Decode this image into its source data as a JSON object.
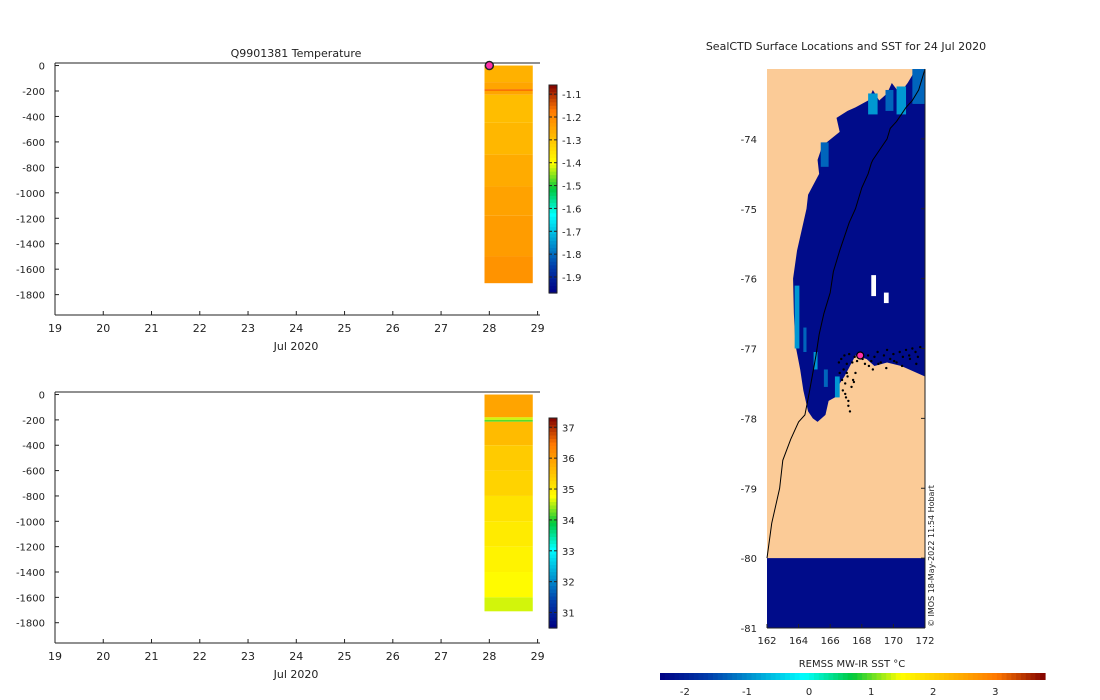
{
  "colors": {
    "land": "#FBCB97",
    "ocean": "#000C8A",
    "frame": "#222222",
    "marker": "#FF2FA8"
  },
  "chart_data": [
    {
      "id": "temperature-section",
      "type": "heatmap",
      "title": "Q9901381  Temperature",
      "xlabel": "Jul 2020",
      "ylabel": "",
      "x_ticks": [
        "19",
        "20",
        "21",
        "22",
        "23",
        "24",
        "25",
        "26",
        "27",
        "28",
        "29"
      ],
      "xlim": [
        19,
        29.05
      ],
      "y_ticks": [
        "0",
        "-200",
        "-400",
        "-600",
        "-800",
        "-1000",
        "-1200",
        "-1400",
        "-1600",
        "-1800"
      ],
      "ylim": [
        -1960,
        20
      ],
      "profile": {
        "x0": 27.9,
        "x1": 28.9
      },
      "layers": [
        {
          "top": 0,
          "bottom": -130,
          "value": -1.27
        },
        {
          "top": -130,
          "bottom": -185,
          "value": -1.25
        },
        {
          "top": -185,
          "bottom": -200,
          "value": -1.17
        },
        {
          "top": -200,
          "bottom": -230,
          "value": -1.25
        },
        {
          "top": -230,
          "bottom": -450,
          "value": -1.29
        },
        {
          "top": -450,
          "bottom": -700,
          "value": -1.28
        },
        {
          "top": -700,
          "bottom": -950,
          "value": -1.26
        },
        {
          "top": -950,
          "bottom": -1180,
          "value": -1.245
        },
        {
          "top": -1180,
          "bottom": -1500,
          "value": -1.235
        },
        {
          "top": -1500,
          "bottom": -1710,
          "value": -1.22
        }
      ],
      "surface_point": {
        "x": 28,
        "y": 0
      },
      "colorbar": {
        "min": -1.97,
        "max": -1.06,
        "ticks": [
          "-1.1",
          "-1.2",
          "-1.3",
          "-1.4",
          "-1.5",
          "-1.6",
          "-1.7",
          "-1.8",
          "-1.9"
        ]
      }
    },
    {
      "id": "salinity-section",
      "type": "heatmap",
      "title": "",
      "xlabel": "Jul 2020",
      "ylabel": "",
      "x_ticks": [
        "19",
        "20",
        "21",
        "22",
        "23",
        "24",
        "25",
        "26",
        "27",
        "28",
        "29"
      ],
      "xlim": [
        19,
        29.05
      ],
      "y_ticks": [
        "0",
        "-200",
        "-400",
        "-600",
        "-800",
        "-1000",
        "-1200",
        "-1400",
        "-1600",
        "-1800"
      ],
      "ylim": [
        -1960,
        20
      ],
      "profile": {
        "x0": 27.9,
        "x1": 28.9
      },
      "layers": [
        {
          "top": 0,
          "bottom": -180,
          "value": 35.9
        },
        {
          "top": -180,
          "bottom": -200,
          "value": 34.6
        },
        {
          "top": -200,
          "bottom": -215,
          "value": 34.2
        },
        {
          "top": -215,
          "bottom": -400,
          "value": 35.6
        },
        {
          "top": -400,
          "bottom": -600,
          "value": 35.4
        },
        {
          "top": -600,
          "bottom": -800,
          "value": 35.3
        },
        {
          "top": -800,
          "bottom": -1000,
          "value": 35.1
        },
        {
          "top": -1000,
          "bottom": -1200,
          "value": 35.0
        },
        {
          "top": -1200,
          "bottom": -1400,
          "value": 34.9
        },
        {
          "top": -1400,
          "bottom": -1600,
          "value": 34.8
        },
        {
          "top": -1600,
          "bottom": -1710,
          "value": 34.6
        }
      ],
      "colorbar": {
        "min": 30.5,
        "max": 37.3,
        "ticks": [
          "37",
          "36",
          "35",
          "34",
          "33",
          "32",
          "31"
        ]
      }
    },
    {
      "id": "sst-map",
      "type": "heatmap",
      "title": "SealCTD Surface Locations and SST for 24 Jul 2020",
      "xlabel": "",
      "ylabel": "",
      "x_ticks": [
        "162",
        "164",
        "166",
        "168",
        "170",
        "172"
      ],
      "xlim": [
        162,
        172
      ],
      "y_ticks": [
        "-74",
        "-75",
        "-76",
        "-77",
        "-78",
        "-79",
        "-80",
        "-81"
      ],
      "ylim": [
        -81,
        -73
      ],
      "coast_lon": [
        162.0,
        162.3,
        162.8,
        163.0,
        163.5,
        164.0,
        164.4,
        164.7,
        165.1,
        165.3,
        165.6,
        166.0,
        166.2,
        166.6,
        166.9,
        167.2,
        167.6,
        168.0,
        168.4,
        168.6,
        168.7,
        169.0,
        169.3,
        169.6,
        169.8,
        170.2,
        170.5,
        170.8,
        171.2,
        171.6,
        172.0
      ],
      "coast_lat": [
        -80.0,
        -79.5,
        -79.0,
        -78.6,
        -78.3,
        -78.05,
        -77.95,
        -77.6,
        -77.1,
        -76.8,
        -76.5,
        -76.2,
        -75.9,
        -75.6,
        -75.4,
        -75.2,
        -75.0,
        -74.7,
        -74.5,
        -74.35,
        -74.3,
        -74.2,
        -74.1,
        -74.0,
        -73.85,
        -73.75,
        -73.65,
        -73.55,
        -73.45,
        -73.3,
        -73.0
      ],
      "ocean_polygon": {
        "lon": [
          163.8,
          163.7,
          163.65,
          163.9,
          164.3,
          164.5,
          164.6,
          165.3,
          165.2,
          165.5,
          166.6,
          166.4,
          167.1,
          167.6,
          168.4,
          168.7,
          169.1,
          169.6,
          169.9,
          170.4,
          170.9,
          171.3,
          171.6,
          171.8,
          172.0,
          172.0,
          170.5,
          169.6,
          168.8,
          168.3,
          167.6,
          166.9,
          166.6,
          166.3,
          165.9,
          165.7,
          165.2,
          164.9,
          164.6,
          164.3,
          164.1
        ],
        "lat": [
          -76.95,
          -76.5,
          -76.0,
          -75.6,
          -75.2,
          -75.0,
          -74.8,
          -74.5,
          -74.3,
          -74.1,
          -73.9,
          -73.7,
          -73.6,
          -73.55,
          -73.45,
          -73.3,
          -73.45,
          -73.35,
          -73.2,
          -73.35,
          -73.2,
          -73.05,
          -73.05,
          -73.0,
          -73.0,
          -77.4,
          -77.25,
          -77.2,
          -77.25,
          -77.15,
          -77.1,
          -77.4,
          -77.5,
          -77.7,
          -77.75,
          -77.95,
          -78.05,
          -78.0,
          -77.9,
          -77.6,
          -77.3
        ]
      },
      "cold_cells": [
        {
          "lon": 171.2,
          "lat": -73.0,
          "w": 0.8,
          "h": 0.5
        },
        {
          "lon": 168.4,
          "lat": -73.35,
          "w": 0.6,
          "h": 0.3
        },
        {
          "lon": 169.5,
          "lat": -73.3,
          "w": 0.5,
          "h": 0.3
        },
        {
          "lon": 170.2,
          "lat": -73.25,
          "w": 0.6,
          "h": 0.4
        },
        {
          "lon": 165.4,
          "lat": -74.05,
          "w": 0.5,
          "h": 0.35
        },
        {
          "lon": 163.75,
          "lat": -76.1,
          "w": 0.3,
          "h": 0.9
        },
        {
          "lon": 164.3,
          "lat": -76.7,
          "w": 0.2,
          "h": 0.35
        },
        {
          "lon": 164.95,
          "lat": -77.05,
          "w": 0.25,
          "h": 0.25
        },
        {
          "lon": 165.6,
          "lat": -77.3,
          "w": 0.25,
          "h": 0.25
        },
        {
          "lon": 166.3,
          "lat": -77.4,
          "w": 0.3,
          "h": 0.3
        }
      ],
      "holes": [
        {
          "lon": 168.6,
          "lat": -75.95,
          "w": 0.3,
          "h": 0.3
        },
        {
          "lon": 169.4,
          "lat": -76.2,
          "w": 0.3,
          "h": 0.15
        }
      ],
      "ocean_band": {
        "lat_top": -80,
        "lat_bottom": -81
      },
      "surface_points_lon": [
        166.55,
        166.7,
        166.9,
        167.05,
        167.2,
        167.4,
        167.55,
        167.7,
        167.9,
        168.05,
        168.2,
        168.4,
        168.6,
        168.8,
        169.0,
        169.2,
        169.4,
        169.6,
        169.8,
        170.0,
        170.2,
        170.4,
        170.6,
        170.8,
        171.0,
        171.2,
        171.4,
        171.55,
        171.7,
        166.6,
        166.75,
        166.95,
        167.1,
        167.35,
        167.5,
        166.8,
        167.0,
        167.15,
        166.85,
        167.05,
        166.95,
        167.15,
        167.25,
        167.45,
        167.6,
        168.45,
        168.7,
        169.05,
        169.55,
        170.05,
        170.55,
        171.05,
        171.45
      ],
      "surface_points_lat": [
        -77.2,
        -77.15,
        -77.1,
        -77.22,
        -77.08,
        -77.2,
        -77.12,
        -77.18,
        -77.1,
        -77.15,
        -77.22,
        -77.1,
        -77.18,
        -77.12,
        -77.05,
        -77.2,
        -77.1,
        -77.02,
        -77.15,
        -77.08,
        -77.2,
        -77.05,
        -77.12,
        -77.02,
        -77.1,
        -77.0,
        -77.05,
        -77.12,
        -76.98,
        -77.35,
        -77.45,
        -77.5,
        -77.4,
        -77.55,
        -77.48,
        -77.6,
        -77.7,
        -77.75,
        -77.3,
        -77.35,
        -77.65,
        -77.82,
        -77.9,
        -77.45,
        -77.35,
        -77.25,
        -77.3,
        -77.22,
        -77.28,
        -77.18,
        -77.25,
        -77.15,
        -77.22
      ],
      "current_position": {
        "lon": 167.9,
        "lat": -77.1
      },
      "attribution": "© IMOS 18-May-2022 11:54 Hobart",
      "colorbar": {
        "label": "REMSS MW-IR SST °C",
        "min": -2.4,
        "max": 3.8,
        "ticks": [
          "-2",
          "-1",
          "0",
          "1",
          "2",
          "3"
        ]
      }
    }
  ]
}
